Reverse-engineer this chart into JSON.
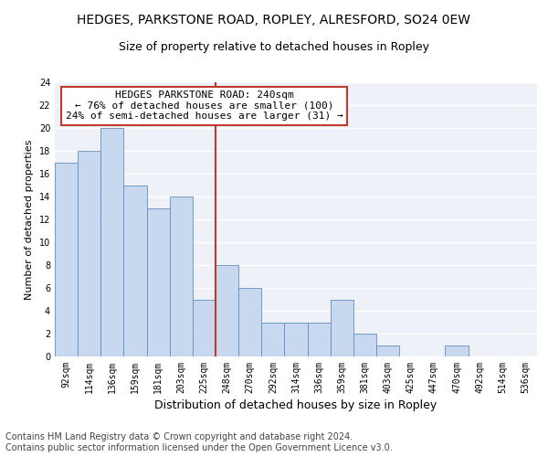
{
  "title1": "HEDGES, PARKSTONE ROAD, ROPLEY, ALRESFORD, SO24 0EW",
  "title2": "Size of property relative to detached houses in Ropley",
  "xlabel": "Distribution of detached houses by size in Ropley",
  "ylabel": "Number of detached properties",
  "categories": [
    "92sqm",
    "114sqm",
    "136sqm",
    "159sqm",
    "181sqm",
    "203sqm",
    "225sqm",
    "248sqm",
    "270sqm",
    "292sqm",
    "314sqm",
    "336sqm",
    "359sqm",
    "381sqm",
    "403sqm",
    "425sqm",
    "447sqm",
    "470sqm",
    "492sqm",
    "514sqm",
    "536sqm"
  ],
  "values": [
    17,
    18,
    20,
    15,
    13,
    14,
    5,
    8,
    6,
    3,
    3,
    3,
    5,
    2,
    1,
    0,
    0,
    1,
    0,
    0,
    0
  ],
  "bar_color": "#c8d8ee",
  "bar_edge_color": "#6090c0",
  "annotation_line1": "HEDGES PARKSTONE ROAD: 240sqm",
  "annotation_line2": "← 76% of detached houses are smaller (100)",
  "annotation_line3": "24% of semi-detached houses are larger (31) →",
  "vline_color": "#c0392b",
  "annotation_box_edge": "#c0392b",
  "ylim": [
    0,
    24
  ],
  "yticks": [
    0,
    2,
    4,
    6,
    8,
    10,
    12,
    14,
    16,
    18,
    20,
    22,
    24
  ],
  "bg_color": "#eef2f8",
  "grid_color": "#ffffff",
  "footer": "Contains HM Land Registry data © Crown copyright and database right 2024.\nContains public sector information licensed under the Open Government Licence v3.0.",
  "title1_fontsize": 10,
  "title2_fontsize": 9,
  "xlabel_fontsize": 9,
  "ylabel_fontsize": 8,
  "annotation_fontsize": 8,
  "footer_fontsize": 7,
  "tick_fontsize": 7
}
